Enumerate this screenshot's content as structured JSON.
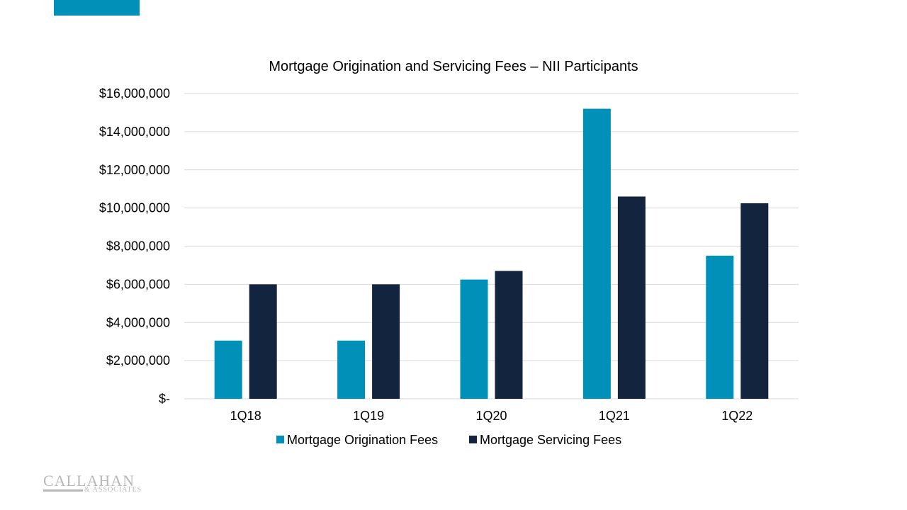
{
  "colors": {
    "accent": "#0090B8",
    "origination": "#0090B8",
    "servicing": "#13243F",
    "grid": "#D9D9D9",
    "logo": "#B8B8B8"
  },
  "logo": {
    "main": "CALLAHAN",
    "sub": "& ASSOCIATES"
  },
  "chart_data": {
    "type": "bar",
    "title": "Mortgage Origination  and Servicing Fees – NII Participants",
    "categories": [
      "1Q18",
      "1Q19",
      "1Q20",
      "1Q21",
      "1Q22"
    ],
    "series": [
      {
        "name": "Mortgage Origination Fees",
        "values": [
          3050000,
          3050000,
          6250000,
          15200000,
          7500000
        ]
      },
      {
        "name": "Mortgage Servicing Fees",
        "values": [
          6000000,
          6000000,
          6700000,
          10600000,
          10250000
        ]
      }
    ],
    "y_ticks": [
      0,
      2000000,
      4000000,
      6000000,
      8000000,
      10000000,
      12000000,
      14000000,
      16000000
    ],
    "y_tick_labels": [
      "$-",
      "$2,000,000",
      "$4,000,000",
      "$6,000,000",
      "$8,000,000",
      "$10,000,000",
      "$12,000,000",
      "$14,000,000",
      "$16,000,000"
    ],
    "ylim": [
      0,
      16000000
    ],
    "grid": true,
    "legend_position": "bottom"
  }
}
